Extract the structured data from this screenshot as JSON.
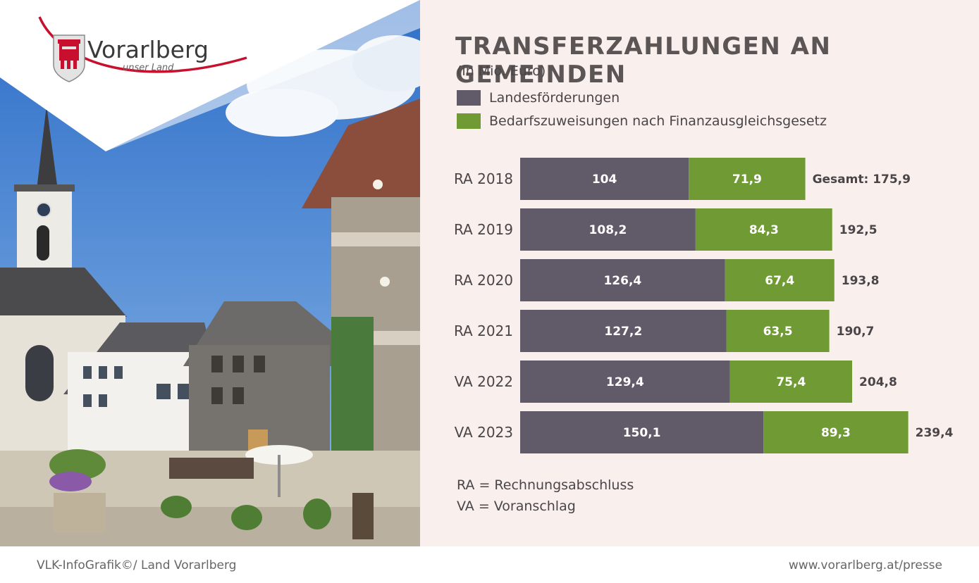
{
  "logo": {
    "name": "Vorarlberg",
    "tagline": "unser Land"
  },
  "panel": {
    "title": "TRANSFERZAHLUNGEN AN GEMEINDEN",
    "subtitle": "(in Mio. Euro)"
  },
  "notes": {
    "ra": "RA = Rechnungsabschluss",
    "va": "VA = Voranschlag"
  },
  "footer": {
    "left": "VLK-InfoGrafik©/ Land Vorarlberg",
    "right": "www.vorarlberg.at/presse"
  },
  "colors": {
    "series1": "#615a69",
    "series2": "#6f9a34",
    "panel_bg": "#f9f0ee",
    "logo_red": "#c8102e"
  },
  "chart_data": {
    "type": "bar",
    "orientation": "horizontal",
    "stacked": true,
    "title": "TRANSFERZAHLUNGEN AN GEMEINDEN",
    "subtitle": "(in Mio. Euro)",
    "categories": [
      "RA 2018",
      "RA 2019",
      "RA 2020",
      "RA 2021",
      "VA 2022",
      "VA 2023"
    ],
    "series": [
      {
        "name": "Landesförderungen",
        "values": [
          104,
          108.2,
          126.4,
          127.2,
          129.4,
          150.1
        ],
        "labels": [
          "104",
          "108,2",
          "126,4",
          "127,2",
          "129,4",
          "150,1"
        ]
      },
      {
        "name": "Bedarfszuweisungen nach Finanzausgleichsgesetz",
        "values": [
          71.9,
          84.3,
          67.4,
          63.5,
          75.4,
          89.3
        ],
        "labels": [
          "71,9",
          "84,3",
          "67,4",
          "63,5",
          "75,4",
          "89,3"
        ]
      }
    ],
    "totals": [
      175.9,
      192.5,
      193.8,
      190.7,
      204.8,
      239.4
    ],
    "total_labels": [
      "Gesamt: 175,9",
      "192,5",
      "193,8",
      "190,7",
      "204,8",
      "239,4"
    ],
    "legend": "top-left",
    "grid": false
  }
}
